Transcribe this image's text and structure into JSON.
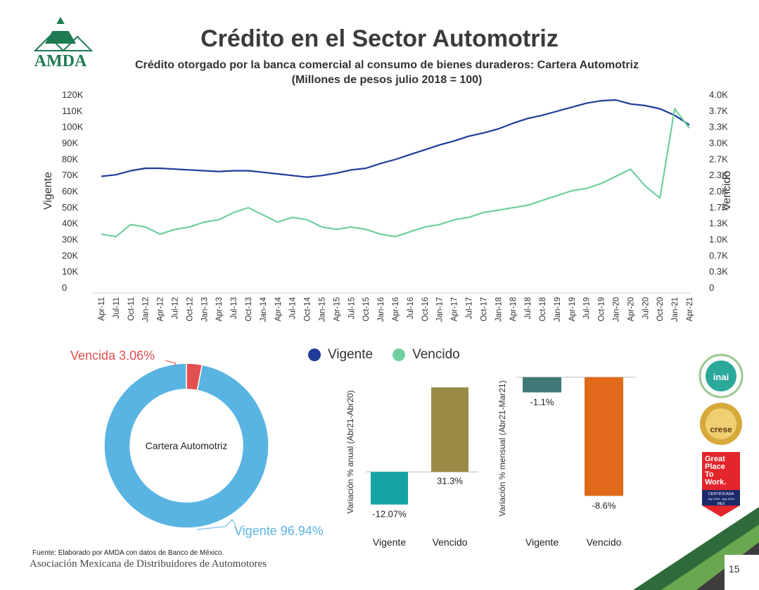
{
  "header": {
    "title": "Crédito en el Sector Automotriz",
    "subtitle_line1": "Crédito otorgado por la banca comercial al consumo de bienes duraderos: Cartera Automotriz",
    "subtitle_line2": "(Millones de pesos julio 2018 = 100)",
    "logo_text": "AMDA"
  },
  "colors": {
    "vigente_line": "#1f3c99",
    "vencido_line": "#6fcf9f",
    "donut_vigente": "#5ab4e2",
    "donut_vencida": "#e35050",
    "bar_vigente_anual": "#17a3a3",
    "bar_vencido_anual": "#9a8a45",
    "bar_vigente_mensual": "#3f7a78",
    "bar_vencido_mensual": "#e06a19"
  },
  "chart_data": [
    {
      "type": "line",
      "ylabel": "Vigente",
      "y2label": "Vencido",
      "ylim": [
        0,
        120000
      ],
      "y2lim": [
        0,
        4000
      ],
      "yticks": [
        "0",
        "10K",
        "20K",
        "30K",
        "40K",
        "50K",
        "60K",
        "70K",
        "80K",
        "90K",
        "100K",
        "110K",
        "120K"
      ],
      "y2ticks": [
        "0",
        "0.3K",
        "0.7K",
        "1.0K",
        "1.3K",
        "1.7K",
        "2.0K",
        "2.3K",
        "2.7K",
        "3.0K",
        "3.3K",
        "3.7K",
        "4.0K"
      ],
      "categories": [
        "Apr-11",
        "Jul-11",
        "Oct-11",
        "Jan-12",
        "Apr-12",
        "Jul-12",
        "Oct-12",
        "Jan-13",
        "Apr-13",
        "Jul-13",
        "Oct-13",
        "Jan-14",
        "Apr-14",
        "Jul-14",
        "Oct-14",
        "Jan-15",
        "Apr-15",
        "Jul-15",
        "Oct-15",
        "Jan-16",
        "Apr-16",
        "Jul-16",
        "Oct-16",
        "Jan-17",
        "Apr-17",
        "Jul-17",
        "Oct-17",
        "Jan-18",
        "Apr-18",
        "Jul-18",
        "Oct-18",
        "Jan-19",
        "Apr-19",
        "Jul-19",
        "Oct-19",
        "Jan-20",
        "Apr-20",
        "Jul-20",
        "Oct-20",
        "Jan-21",
        "Apr-21"
      ],
      "series": [
        {
          "name": "Vigente",
          "axis": "left",
          "values": [
            69000,
            70000,
            72500,
            74000,
            74000,
            73500,
            73000,
            72500,
            72000,
            72500,
            72500,
            71500,
            70500,
            69500,
            68500,
            69500,
            71000,
            73000,
            74000,
            77000,
            79500,
            82500,
            85500,
            88500,
            91000,
            94000,
            96000,
            98500,
            102000,
            105000,
            107000,
            109500,
            112000,
            114500,
            116000,
            116500,
            114000,
            113000,
            111000,
            107000,
            101000
          ]
        },
        {
          "name": "Vencido",
          "axis": "right",
          "values": [
            1100,
            1050,
            1300,
            1250,
            1100,
            1200,
            1250,
            1350,
            1400,
            1550,
            1650,
            1500,
            1350,
            1450,
            1400,
            1250,
            1200,
            1250,
            1200,
            1100,
            1050,
            1150,
            1250,
            1300,
            1400,
            1450,
            1550,
            1600,
            1650,
            1700,
            1800,
            1900,
            2000,
            2050,
            2150,
            2300,
            2450,
            2100,
            1850,
            3700,
            3300
          ]
        }
      ]
    },
    {
      "type": "pie",
      "center_label": "Cartera Automotriz",
      "categories": [
        "Vigente",
        "Vencida"
      ],
      "values": [
        96.94,
        3.06
      ],
      "labels": [
        "Vigente 96.94%",
        "Vencida 3.06%"
      ]
    },
    {
      "type": "bar",
      "ylabel": "Variación % anual (Abr21-Abr20)",
      "categories": [
        "Vigente",
        "Vencido"
      ],
      "values": [
        -12.07,
        31.3
      ],
      "value_labels": [
        "-12.07%",
        "31.3%"
      ],
      "ylim": [
        -14,
        35
      ]
    },
    {
      "type": "bar",
      "ylabel": "Variación % mensual (Abr21-Mar21)",
      "categories": [
        "Vigente",
        "Vencido"
      ],
      "values": [
        -1.1,
        -8.6
      ],
      "value_labels": [
        "-1.1%",
        "-8.6%"
      ],
      "ylim": [
        -9.6,
        0.5
      ]
    }
  ],
  "legend": {
    "vigente": "Vigente",
    "vencido": "Vencido"
  },
  "badges": {
    "inai": "inai",
    "crese": "crese",
    "gptw_line1": "Great",
    "gptw_line2": "Place",
    "gptw_line3": "To",
    "gptw_line4": "Work.",
    "gptw_cert": "CERTIFICADA",
    "gptw_dates": "Sep 2019 - Ago 2020",
    "gptw_country": "MEX"
  },
  "footer": {
    "source": "Fuente: Elaborado por AMDA con datos de Banco de México.",
    "association": "Asociación Mexicana de Distribuidores de Automotores",
    "page_number": "15"
  }
}
